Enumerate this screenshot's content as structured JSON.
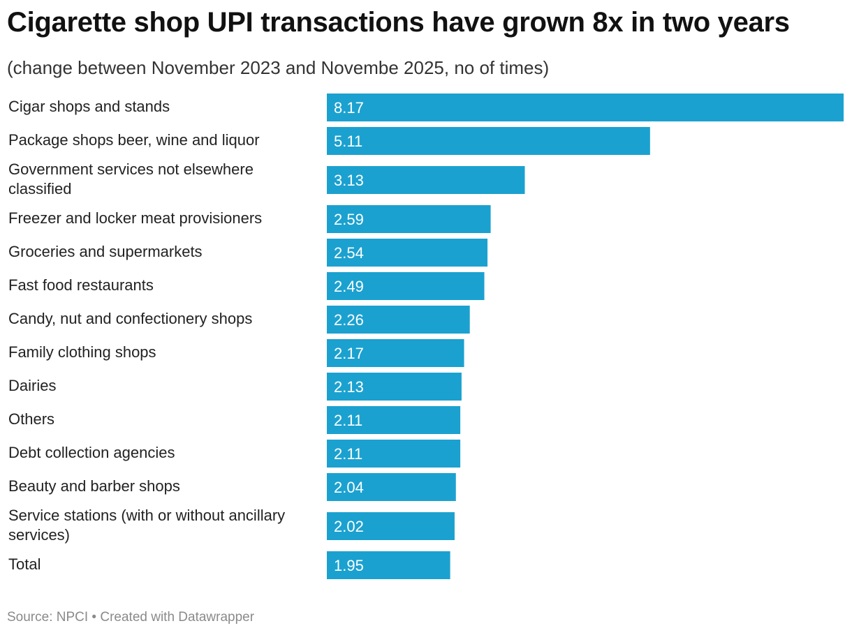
{
  "chart_data": {
    "type": "bar",
    "orientation": "horizontal",
    "title": "Cigarette shop UPI transactions have grown 8x in two years",
    "subtitle": "(change between November 2023 and Novembe 2025, no of times)",
    "categories": [
      "Cigar shops and stands",
      "Package shops beer, wine and liquor",
      "Government services not elsewhere classified",
      "Freezer and locker meat provisioners",
      "Groceries and supermarkets",
      "Fast food restaurants",
      "Candy, nut and confectionery shops",
      "Family clothing shops",
      "Dairies",
      "Others",
      "Debt collection agencies",
      "Beauty and barber shops",
      "Service stations (with or without ancillary services)",
      "Total"
    ],
    "values": [
      8.17,
      5.11,
      3.13,
      2.59,
      2.54,
      2.49,
      2.26,
      2.17,
      2.13,
      2.11,
      2.11,
      2.04,
      2.02,
      1.95
    ],
    "value_labels": [
      "8.17",
      "5.11",
      "3.13",
      "2.59",
      "2.54",
      "2.49",
      "2.26",
      "2.17",
      "2.13",
      "2.11",
      "2.11",
      "2.04",
      "2.02",
      "1.95"
    ],
    "xlim": [
      0,
      8.17
    ],
    "grid": false,
    "legend": "none",
    "bar_color": "#1ba1cf",
    "source": "Source: NPCI • Created with Datawrapper"
  }
}
